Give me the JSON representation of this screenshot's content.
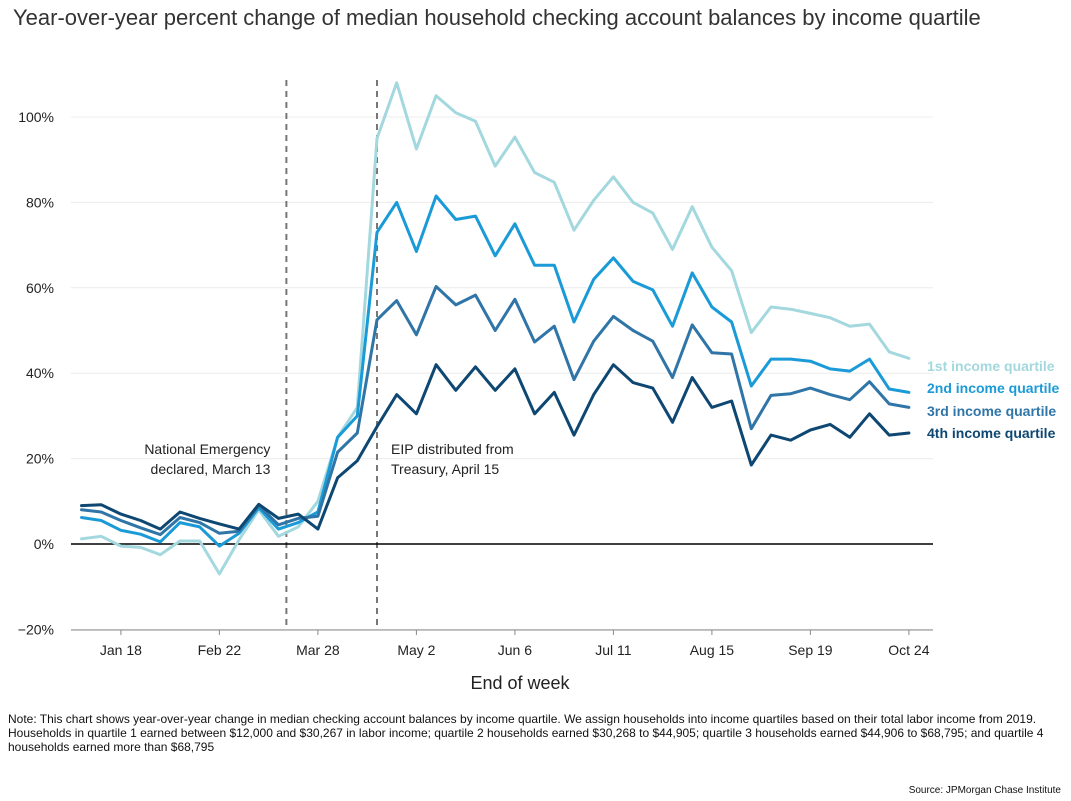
{
  "title": "Year-over-year percent change of median household checking account balances by income quartile",
  "note": "Note: This chart shows year-over-year change in median checking account balances by income quartile. We assign households into income quartiles based on their total labor income from 2019. Households in quartile 1 earned between $12,000 and $30,267 in labor income; quartile 2 households earned $30,268 to $44,905; quartile 3 households earned $44,906 to $68,795; and quartile 4 households earned more than $68,795",
  "source": "Source: JPMorgan Chase Institute",
  "chart_data": {
    "type": "line",
    "xlabel": "End of week",
    "ylabel": "",
    "ylim": [
      -20,
      110
    ],
    "yticks": [
      -20,
      0,
      20,
      40,
      60,
      80,
      100
    ],
    "ytick_labels": [
      "−20%",
      "0%",
      "20%",
      "40%",
      "60%",
      "80%",
      "100%"
    ],
    "xticks": [
      {
        "index": 2,
        "label": "Jan 18"
      },
      {
        "index": 7,
        "label": "Feb 22"
      },
      {
        "index": 12,
        "label": "Mar 28"
      },
      {
        "index": 17,
        "label": "May 2"
      },
      {
        "index": 22,
        "label": "Jun 6"
      },
      {
        "index": 27,
        "label": "Jul 11"
      },
      {
        "index": 32,
        "label": "Aug 15"
      },
      {
        "index": 37,
        "label": "Sep 19"
      },
      {
        "index": 42,
        "label": "Oct 24"
      }
    ],
    "grid": true,
    "legend_placement": "right",
    "series": [
      {
        "name": "1st income quartile",
        "color": "#a3d8de",
        "values": [
          1.2,
          1.8,
          -0.5,
          -0.8,
          -2.5,
          0.7,
          0.7,
          -7.0,
          1.0,
          8.0,
          1.8,
          4.0,
          10.0,
          25.0,
          32.0,
          95.0,
          108.0,
          92.5,
          105.0,
          101.0,
          99.0,
          88.5,
          95.3,
          87.0,
          84.7,
          73.5,
          80.5,
          86.0,
          80.0,
          77.5,
          69.0,
          79.0,
          69.5,
          64.0,
          49.5,
          55.5,
          55.0,
          54.0,
          53.0,
          51.0,
          51.5,
          45.0,
          43.5
        ]
      },
      {
        "name": "2nd income quartile",
        "color": "#1a9bd7",
        "values": [
          6.2,
          5.5,
          3.2,
          2.3,
          0.5,
          5.0,
          4.0,
          -0.5,
          2.5,
          8.5,
          3.5,
          5.0,
          7.5,
          25.0,
          30.0,
          73.0,
          80.0,
          68.5,
          81.5,
          76.0,
          76.8,
          67.5,
          75.0,
          65.3,
          65.3,
          52.0,
          62.0,
          67.0,
          61.5,
          59.5,
          51.0,
          63.5,
          55.5,
          52.0,
          37.0,
          43.3,
          43.3,
          42.8,
          41.0,
          40.5,
          43.3,
          36.3,
          35.5
        ]
      },
      {
        "name": "3rd income quartile",
        "color": "#2f75a8",
        "values": [
          8.0,
          7.5,
          5.5,
          3.8,
          2.2,
          6.2,
          5.0,
          2.5,
          3.0,
          9.0,
          4.5,
          6.0,
          6.5,
          21.5,
          26.0,
          52.5,
          57.0,
          49.0,
          60.3,
          56.0,
          58.3,
          50.0,
          57.3,
          47.3,
          51.0,
          38.5,
          47.5,
          53.3,
          50.0,
          47.5,
          39.0,
          51.3,
          44.8,
          44.5,
          27.0,
          34.8,
          35.2,
          36.5,
          35.0,
          33.8,
          38.0,
          32.8,
          32.0
        ]
      },
      {
        "name": "4th income quartile",
        "color": "#0d4772",
        "values": [
          9.0,
          9.2,
          7.0,
          5.5,
          3.5,
          7.5,
          6.0,
          4.7,
          3.5,
          9.3,
          6.0,
          7.0,
          3.5,
          15.5,
          19.5,
          27.5,
          35.0,
          30.5,
          42.0,
          36.0,
          41.5,
          36.0,
          41.0,
          30.5,
          35.5,
          25.5,
          35.0,
          42.0,
          37.8,
          36.5,
          28.5,
          39.0,
          32.0,
          33.5,
          18.5,
          25.5,
          24.3,
          26.7,
          28.0,
          25.0,
          30.5,
          25.5,
          26.0
        ]
      }
    ],
    "annotations": [
      {
        "at_index": 10.4,
        "lines": [
          "National Emergency",
          "declared, March 13"
        ],
        "align": "right"
      },
      {
        "at_index": 15.0,
        "lines": [
          "EIP distributed from",
          "Treasury, April 15"
        ],
        "align": "left"
      }
    ]
  }
}
